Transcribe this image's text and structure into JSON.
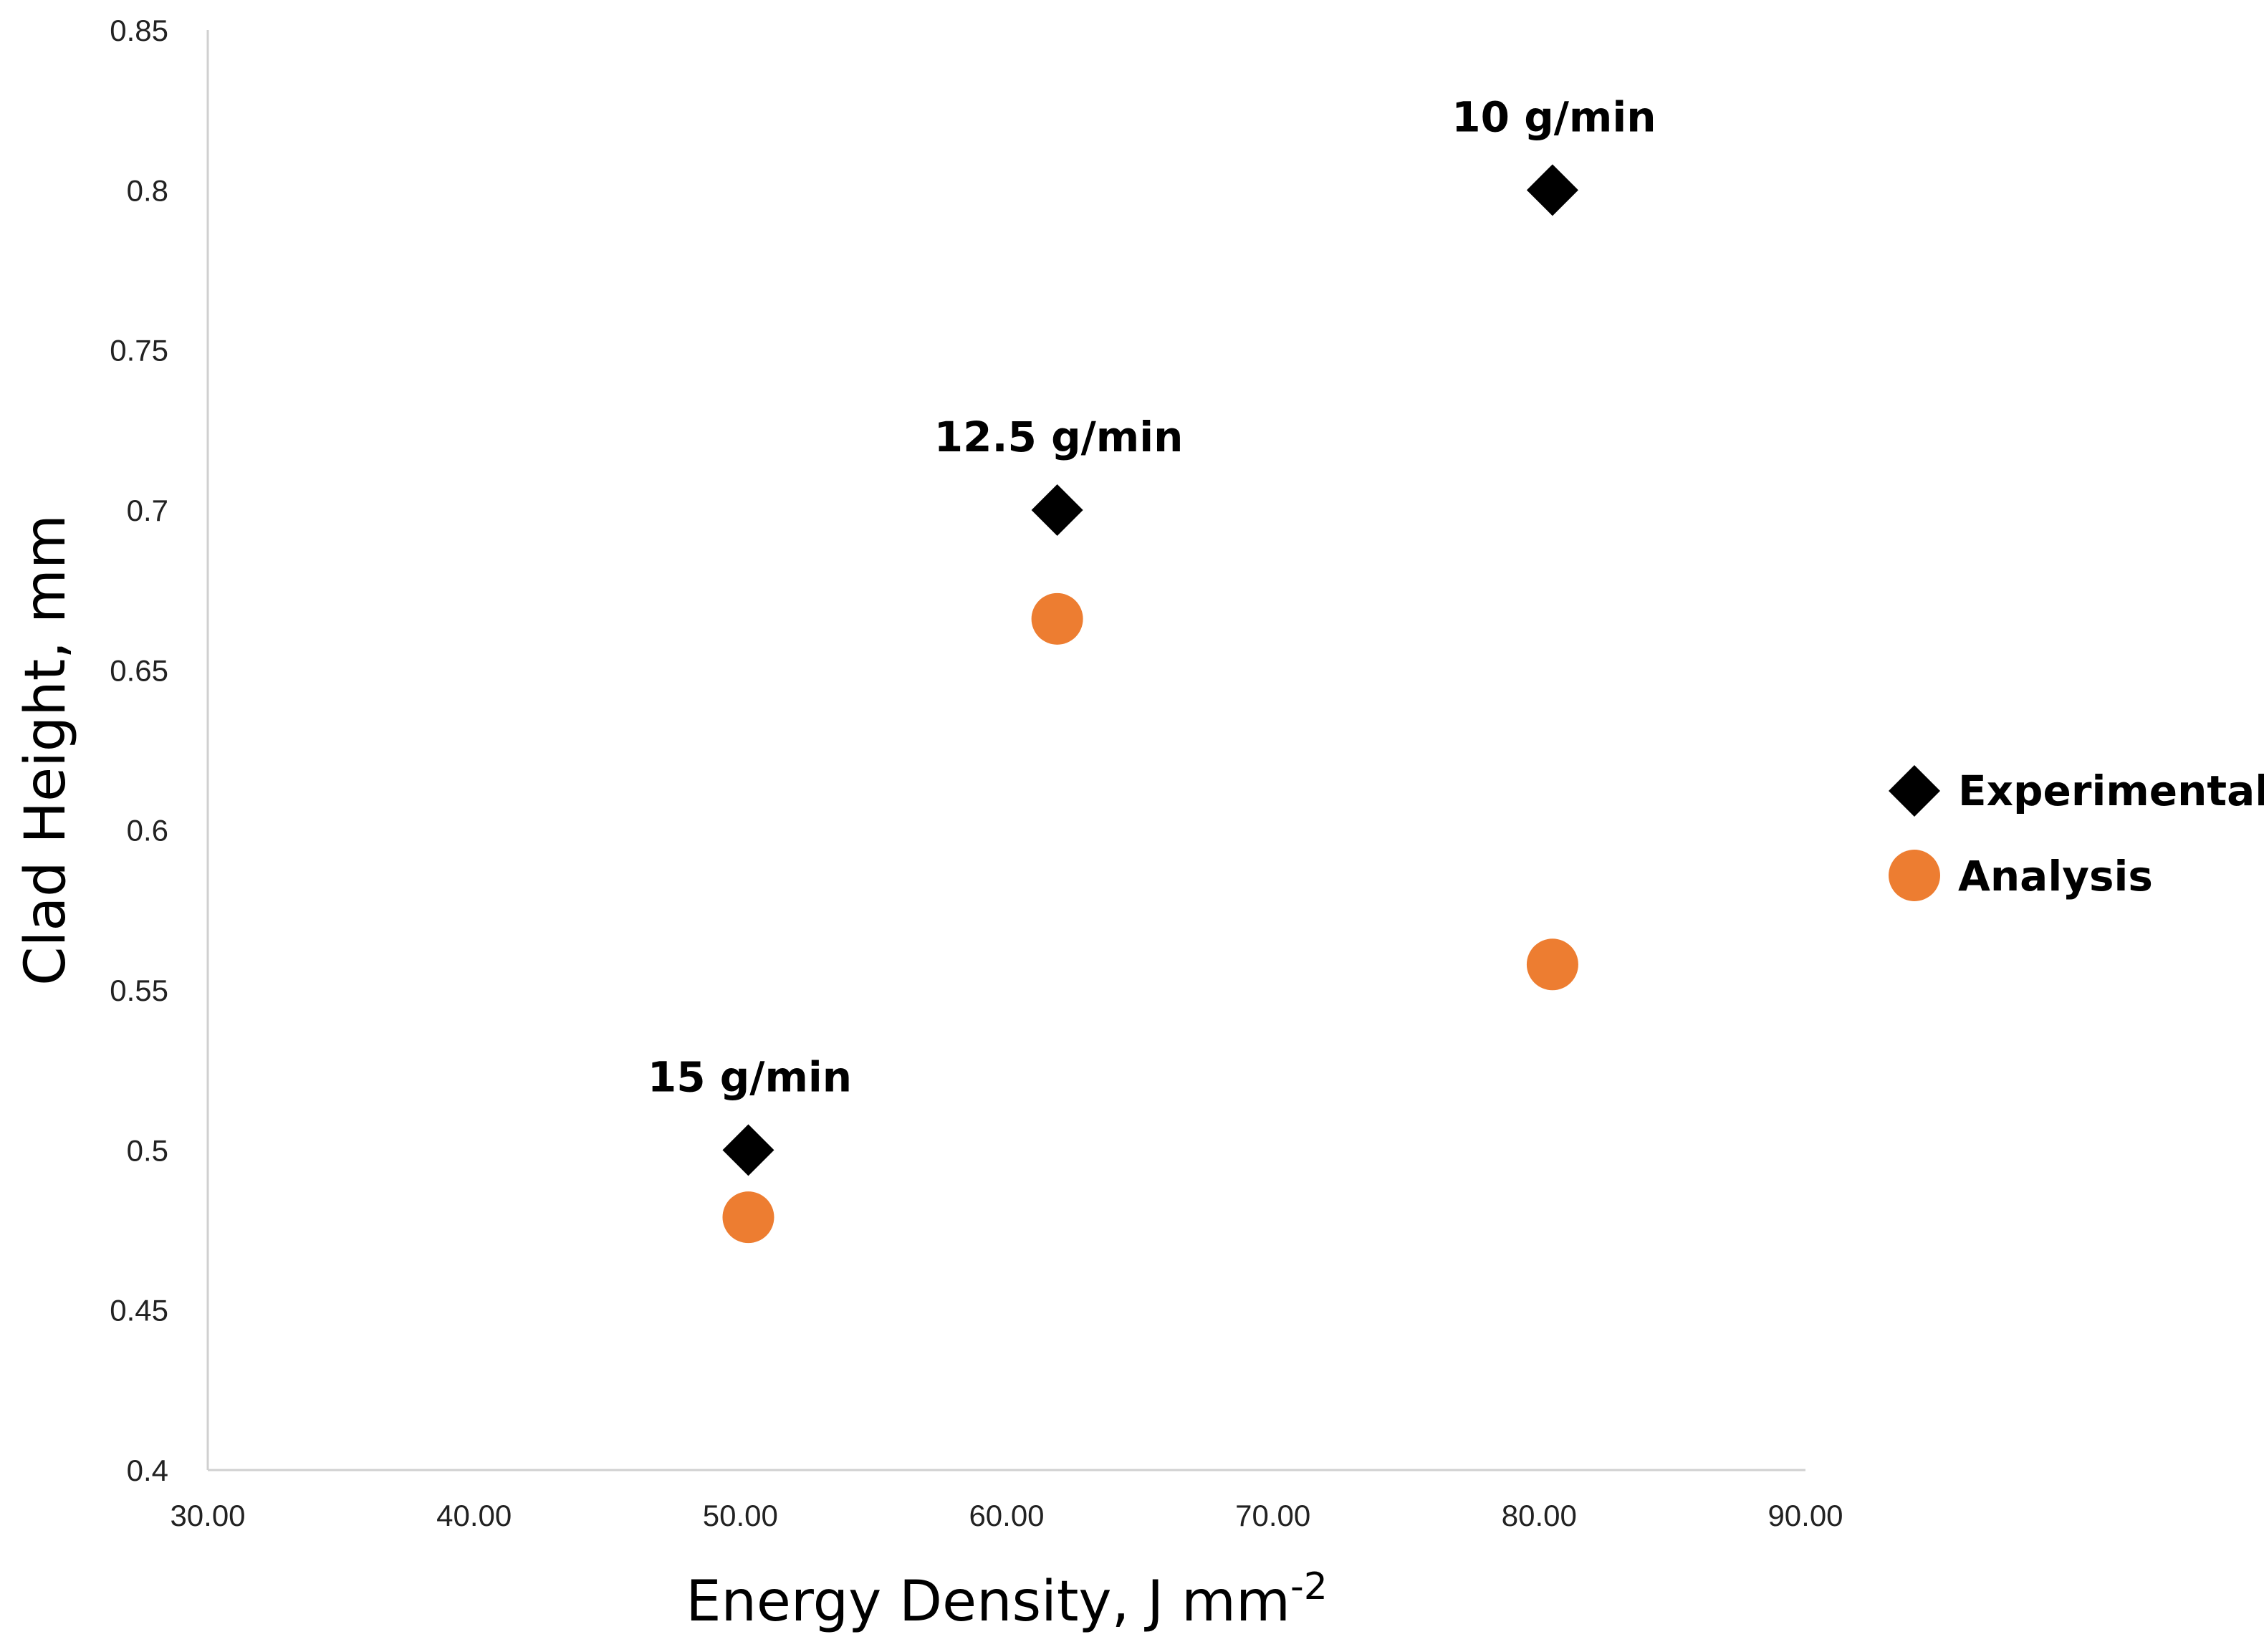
{
  "chart_data": {
    "type": "scatter",
    "title": "",
    "xlabel": "Energy Density, J mm",
    "xlabel_superscript": "-2",
    "ylabel": "Clad Height, mm",
    "xlim": [
      30,
      90
    ],
    "ylim": [
      0.4,
      0.85
    ],
    "x_ticks": [
      "30.00",
      "40.00",
      "50.00",
      "60.00",
      "70.00",
      "80.00",
      "90.00"
    ],
    "y_ticks": [
      "0.4",
      "0.45",
      "0.5",
      "0.55",
      "0.6",
      "0.65",
      "0.7",
      "0.75",
      "0.8",
      "0.85"
    ],
    "grid": false,
    "legend_position": "right",
    "series": [
      {
        "name": "Experimental",
        "marker": "diamond",
        "color": "#000000",
        "points": [
          {
            "x": 50.3,
            "y": 0.5
          },
          {
            "x": 61.9,
            "y": 0.7
          },
          {
            "x": 80.5,
            "y": 0.8
          }
        ]
      },
      {
        "name": "Analysis",
        "marker": "circle",
        "color": "#ED7D31",
        "points": [
          {
            "x": 50.3,
            "y": 0.479
          },
          {
            "x": 61.9,
            "y": 0.666
          },
          {
            "x": 80.5,
            "y": 0.558
          }
        ]
      }
    ],
    "annotations": [
      {
        "text": "15 g/min",
        "x": 50.3,
        "y": 0.5
      },
      {
        "text": "12.5 g/min",
        "x": 61.9,
        "y": 0.7
      },
      {
        "text": "10 g/min",
        "x": 80.5,
        "y": 0.8
      }
    ]
  }
}
